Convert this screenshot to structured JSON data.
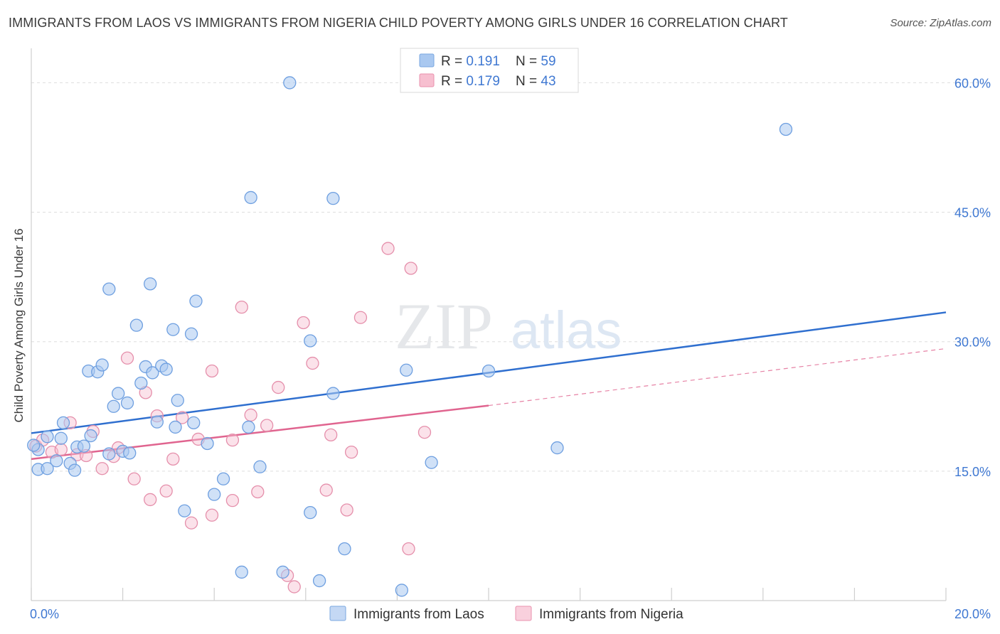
{
  "header": {
    "title": "IMMIGRANTS FROM LAOS VS IMMIGRANTS FROM NIGERIA CHILD POVERTY AMONG GIRLS UNDER 16 CORRELATION CHART",
    "source": "Source: ZipAtlas.com"
  },
  "watermark": {
    "zip": "ZIP",
    "atlas": "atlas"
  },
  "legend_top": {
    "rows": [
      {
        "r_label": "R = ",
        "r_value": "0.191",
        "n_label": "N = ",
        "n_value": "59",
        "color": "#a9c8f0",
        "stroke": "#7aa7e0"
      },
      {
        "r_label": "R = ",
        "r_value": "0.179",
        "n_label": "N = ",
        "n_value": "43",
        "color": "#f7bfd0",
        "stroke": "#ea92ae"
      }
    ]
  },
  "colors": {
    "laos_fill": "#a9c8f0",
    "laos_stroke": "#6e9fe0",
    "laos_line": "#2f6fcf",
    "nigeria_fill": "#f7bfd0",
    "nigeria_stroke": "#e58fab",
    "nigeria_line": "#e0648f",
    "axis_text": "#3f78d2",
    "grid": "#dddddd"
  },
  "chart_data": {
    "type": "scatter",
    "title": "IMMIGRANTS FROM LAOS VS IMMIGRANTS FROM NIGERIA CHILD POVERTY AMONG GIRLS UNDER 16 CORRELATION CHART",
    "xlabel": "",
    "ylabel": "Child Poverty Among Girls Under 16",
    "xlim": [
      0,
      20
    ],
    "ylim": [
      0,
      63
    ],
    "x_tick_labels": [
      "0.0%",
      "20.0%"
    ],
    "y_ticks": [
      15,
      30,
      45,
      60
    ],
    "y_tick_labels": [
      "15.0%",
      "30.0%",
      "45.0%",
      "60.0%"
    ],
    "legend_position": "bottom-center",
    "series": [
      {
        "name": "Immigrants from Laos",
        "r": 0.191,
        "n": 59,
        "trend": {
          "x0": 0,
          "y0": 19.4,
          "x1": 20,
          "y1": 33.4,
          "dashed_to": null
        },
        "points": [
          [
            0.15,
            17.5
          ],
          [
            0.15,
            15.2
          ],
          [
            0.35,
            15.3
          ],
          [
            0.35,
            19.0
          ],
          [
            0.55,
            16.2
          ],
          [
            0.7,
            20.6
          ],
          [
            0.65,
            18.8
          ],
          [
            0.85,
            15.9
          ],
          [
            0.95,
            15.1
          ],
          [
            1.0,
            17.8
          ],
          [
            1.15,
            17.9
          ],
          [
            1.3,
            19.1
          ],
          [
            1.25,
            26.6
          ],
          [
            1.45,
            26.5
          ],
          [
            1.55,
            27.3
          ],
          [
            1.7,
            17.0
          ],
          [
            1.7,
            36.1
          ],
          [
            1.8,
            22.5
          ],
          [
            1.9,
            24.0
          ],
          [
            2.0,
            17.3
          ],
          [
            2.1,
            22.9
          ],
          [
            2.15,
            17.1
          ],
          [
            2.3,
            31.9
          ],
          [
            2.4,
            25.2
          ],
          [
            2.5,
            27.1
          ],
          [
            2.6,
            36.7
          ],
          [
            2.65,
            26.4
          ],
          [
            2.75,
            20.7
          ],
          [
            2.85,
            27.2
          ],
          [
            2.95,
            26.8
          ],
          [
            3.1,
            31.4
          ],
          [
            3.15,
            20.1
          ],
          [
            3.2,
            23.2
          ],
          [
            3.35,
            10.4
          ],
          [
            3.5,
            30.9
          ],
          [
            3.55,
            20.6
          ],
          [
            3.6,
            34.7
          ],
          [
            3.85,
            18.2
          ],
          [
            4.0,
            12.3
          ],
          [
            4.2,
            14.1
          ],
          [
            4.6,
            3.3
          ],
          [
            4.75,
            20.1
          ],
          [
            4.8,
            46.7
          ],
          [
            5.0,
            15.5
          ],
          [
            5.5,
            3.3
          ],
          [
            5.65,
            60.0
          ],
          [
            6.1,
            30.1
          ],
          [
            6.1,
            10.2
          ],
          [
            6.3,
            2.3
          ],
          [
            6.6,
            46.6
          ],
          [
            6.6,
            24.0
          ],
          [
            6.85,
            6.0
          ],
          [
            8.1,
            1.2
          ],
          [
            8.2,
            26.7
          ],
          [
            8.75,
            16.0
          ],
          [
            10.0,
            26.6
          ],
          [
            11.5,
            17.7
          ],
          [
            16.5,
            54.6
          ],
          [
            0.05,
            18.0
          ]
        ]
      },
      {
        "name": "Immigrants from Nigeria",
        "r": 0.179,
        "n": 43,
        "trend": {
          "x0": 0,
          "y0": 16.4,
          "x1": 10,
          "y1": 22.6,
          "dashed_to": {
            "x": 20,
            "y": 29.2
          }
        },
        "points": [
          [
            0.1,
            17.9
          ],
          [
            0.25,
            18.6
          ],
          [
            0.45,
            17.2
          ],
          [
            0.65,
            17.5
          ],
          [
            0.85,
            20.6
          ],
          [
            1.0,
            16.9
          ],
          [
            1.2,
            16.8
          ],
          [
            1.35,
            19.6
          ],
          [
            1.55,
            15.3
          ],
          [
            1.8,
            16.7
          ],
          [
            1.9,
            17.7
          ],
          [
            2.1,
            28.1
          ],
          [
            2.25,
            14.1
          ],
          [
            2.5,
            24.1
          ],
          [
            2.6,
            11.7
          ],
          [
            2.75,
            21.4
          ],
          [
            2.95,
            12.7
          ],
          [
            3.1,
            16.4
          ],
          [
            3.3,
            21.2
          ],
          [
            3.5,
            9.0
          ],
          [
            3.65,
            18.7
          ],
          [
            3.95,
            26.6
          ],
          [
            3.95,
            9.9
          ],
          [
            4.4,
            11.6
          ],
          [
            4.4,
            18.6
          ],
          [
            4.6,
            34.0
          ],
          [
            4.8,
            21.5
          ],
          [
            4.95,
            12.6
          ],
          [
            5.15,
            20.3
          ],
          [
            5.4,
            24.7
          ],
          [
            5.6,
            2.9
          ],
          [
            5.75,
            1.6
          ],
          [
            5.95,
            32.2
          ],
          [
            6.15,
            27.5
          ],
          [
            6.45,
            12.8
          ],
          [
            6.55,
            19.2
          ],
          [
            6.9,
            10.5
          ],
          [
            7.0,
            17.2
          ],
          [
            7.2,
            32.8
          ],
          [
            7.8,
            40.8
          ],
          [
            8.25,
            6.0
          ],
          [
            8.3,
            38.5
          ],
          [
            8.6,
            19.5
          ]
        ]
      }
    ]
  },
  "legend_bottom": {
    "items": [
      {
        "label": "Immigrants from Laos"
      },
      {
        "label": "Immigrants from Nigeria"
      }
    ]
  }
}
